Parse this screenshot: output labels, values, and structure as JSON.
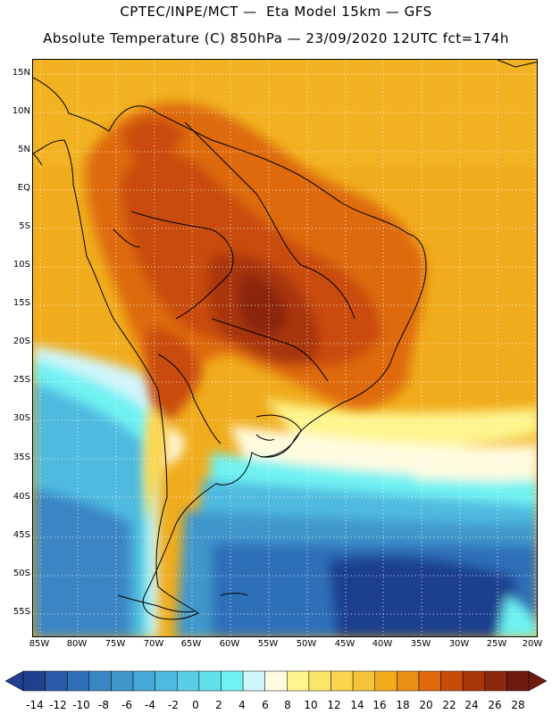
{
  "title": {
    "line1": "CPTEC/INPE/MCT —  Eta Model 15km — GFS",
    "line2": "Absolute Temperature (C) 850hPa — 23/09/2020 12UTC fct=174h"
  },
  "axes": {
    "lat_labels": [
      "15N",
      "10N",
      "5N",
      "EQ",
      "5S",
      "10S",
      "15S",
      "20S",
      "25S",
      "30S",
      "35S",
      "40S",
      "45S",
      "50S",
      "55S"
    ],
    "lon_labels": [
      "85W",
      "80W",
      "75W",
      "70W",
      "65W",
      "60W",
      "55W",
      "50W",
      "45W",
      "40W",
      "35W",
      "30W",
      "25W",
      "20W"
    ]
  },
  "colorbar": {
    "labels": [
      "-14",
      "-12",
      "-10",
      "-8",
      "-6",
      "-4",
      "-2",
      "0",
      "2",
      "4",
      "6",
      "8",
      "10",
      "12",
      "14",
      "16",
      "18",
      "20",
      "22",
      "24",
      "26",
      "28"
    ],
    "colors": [
      "#1f3f8f",
      "#2a5aa8",
      "#2f6fb8",
      "#3a85c4",
      "#3f97cc",
      "#45a8d6",
      "#4fbadf",
      "#5ccde6",
      "#63e0ec",
      "#6ff2f2",
      "#d0f5fb",
      "#fffbe0",
      "#fef58f",
      "#fde56a",
      "#fad54e",
      "#f6c43a",
      "#f0ac1c",
      "#ea8e14",
      "#de6a0c",
      "#c94b08",
      "#a93608",
      "#8b2810",
      "#6e1a10"
    ]
  }
}
